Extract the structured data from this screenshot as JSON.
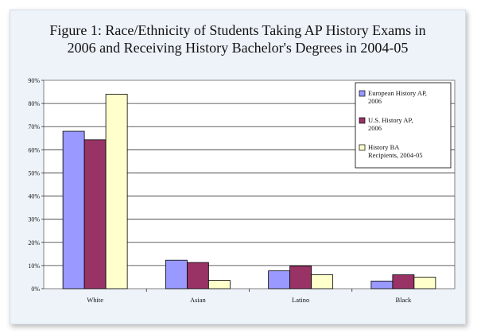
{
  "chart_data": {
    "type": "bar",
    "title": "Figure 1: Race/Ethnicity of Students Taking AP History Exams in 2006 and Receiving History Bachelor's Degrees in 2004-05",
    "categories": [
      "White",
      "Asian",
      "Latino",
      "Black"
    ],
    "series": [
      {
        "name": "European History AP, 2006",
        "values": [
          68,
          12.3,
          7.7,
          3.3
        ],
        "color": "#9999ff"
      },
      {
        "name": "U.S. History AP, 2006",
        "values": [
          64.3,
          11.3,
          9.8,
          6
        ],
        "color": "#993366"
      },
      {
        "name": "History BA Recipients, 2004-05",
        "values": [
          84,
          3.6,
          6,
          5
        ],
        "color": "#ffffcc"
      }
    ],
    "ylim": [
      0,
      90
    ],
    "yticks": [
      "0%",
      "10%",
      "20%",
      "30%",
      "40%",
      "50%",
      "60%",
      "70%",
      "80%",
      "90%"
    ],
    "grid": true,
    "legend_position": "top-right"
  }
}
